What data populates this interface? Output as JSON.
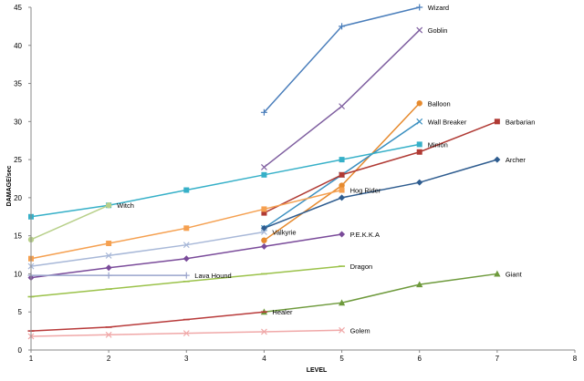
{
  "chart_data": {
    "type": "line",
    "title": "",
    "xlabel": "LEVEL",
    "ylabel": "DAMAGE/sec",
    "xlim": [
      1,
      8
    ],
    "ylim": [
      0,
      45
    ],
    "x_ticks": [
      1,
      2,
      3,
      4,
      5,
      6,
      7,
      8
    ],
    "y_ticks": [
      0,
      5,
      10,
      15,
      20,
      25,
      30,
      35,
      40,
      45
    ],
    "grid": false,
    "legend": "inline labels at line ends",
    "series": [
      {
        "name": "Wizard",
        "color": "#4a7ebb",
        "marker": "plus",
        "x": [
          4,
          5,
          6
        ],
        "y": [
          31.2,
          42.5,
          45
        ]
      },
      {
        "name": "Goblin",
        "color": "#7f5fa0",
        "marker": "x",
        "x": [
          4,
          5,
          6
        ],
        "y": [
          24,
          32,
          42
        ]
      },
      {
        "name": "Balloon",
        "color": "#e68a2e",
        "marker": "circle",
        "x": [
          4,
          5,
          6
        ],
        "y": [
          14.4,
          21.6,
          32.4
        ]
      },
      {
        "name": "Wall Breaker",
        "color": "#3a8fc0",
        "marker": "x",
        "x": [
          4,
          5,
          6
        ],
        "y": [
          16,
          23,
          30
        ]
      },
      {
        "name": "Barbarian",
        "color": "#b03a34",
        "marker": "square",
        "x": [
          4,
          5,
          6,
          7
        ],
        "y": [
          18,
          23,
          26,
          30
        ]
      },
      {
        "name": "Minion",
        "color": "#36b0c8",
        "marker": "square",
        "x": [
          1,
          2,
          3,
          4,
          5,
          6
        ],
        "y": [
          17.5,
          19,
          21,
          23,
          25,
          27
        ]
      },
      {
        "name": "Archer",
        "color": "#2e5c8f",
        "marker": "diamond",
        "x": [
          4,
          5,
          6,
          7
        ],
        "y": [
          16,
          20,
          22,
          25
        ]
      },
      {
        "name": "Witch",
        "color": "#b8d08a",
        "marker": "circle",
        "x": [
          1,
          2
        ],
        "y": [
          14.5,
          19
        ]
      },
      {
        "name": "Hog Rider",
        "color": "#f5a050",
        "marker": "square",
        "x": [
          1,
          2,
          3,
          4,
          5
        ],
        "y": [
          12,
          14,
          16,
          18.5,
          21
        ]
      },
      {
        "name": "Valkyrie",
        "color": "#a8b8d8",
        "marker": "x",
        "x": [
          1,
          2,
          3,
          4
        ],
        "y": [
          11,
          12.4,
          13.8,
          15.5
        ]
      },
      {
        "name": "P.E.K.K.A",
        "color": "#7a4b9a",
        "marker": "diamond",
        "x": [
          1,
          2,
          3,
          4,
          5
        ],
        "y": [
          9.5,
          10.8,
          12,
          13.6,
          15.2
        ]
      },
      {
        "name": "Lava Hound",
        "color": "#9aa4cc",
        "marker": "plus",
        "x": [
          1,
          2,
          3
        ],
        "y": [
          9.8,
          9.8,
          9.8
        ]
      },
      {
        "name": "Dragon",
        "color": "#9bc24a",
        "marker": "dash",
        "x": [
          1,
          2,
          3,
          4,
          5
        ],
        "y": [
          7,
          8,
          9,
          10,
          11
        ]
      },
      {
        "name": "Giant",
        "color": "#6e9a3c",
        "marker": "triangle",
        "x": [
          4,
          5,
          6,
          7
        ],
        "y": [
          5,
          6.2,
          8.6,
          10
        ]
      },
      {
        "name": "Healer",
        "color": "#b83a3a",
        "marker": "dash",
        "x": [
          1,
          2,
          3,
          4
        ],
        "y": [
          2.5,
          3,
          4,
          5
        ]
      },
      {
        "name": "Golem",
        "color": "#f0a8a8",
        "marker": "x",
        "x": [
          1,
          2,
          3,
          4,
          5
        ],
        "y": [
          1.8,
          2,
          2.2,
          2.4,
          2.6
        ]
      }
    ]
  }
}
